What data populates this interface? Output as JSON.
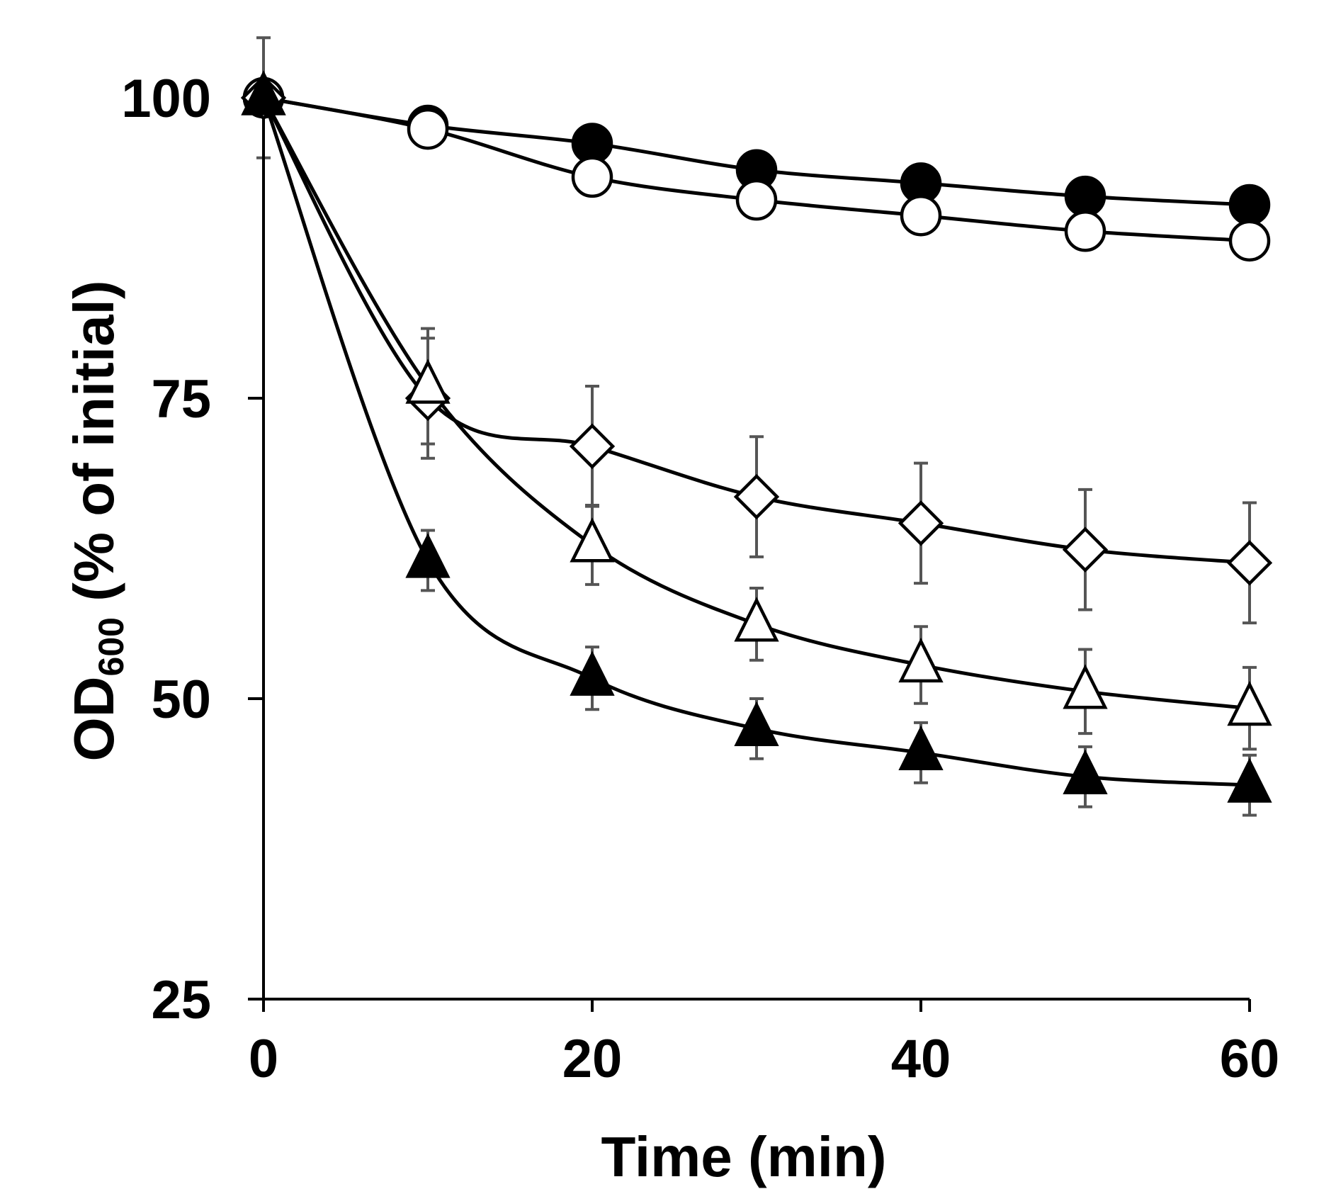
{
  "chart_data": {
    "type": "line",
    "title": "",
    "xlabel": "Time (min)",
    "ylabel_main": "OD",
    "ylabel_sub": "600",
    "ylabel_rest": " (% of initial)",
    "xlim": [
      0,
      60
    ],
    "ylim": [
      25,
      100
    ],
    "xticks": [
      0,
      20,
      40,
      60
    ],
    "yticks": [
      25,
      50,
      75,
      100
    ],
    "grid": false,
    "x": [
      0,
      10,
      20,
      30,
      40,
      50,
      60
    ],
    "series": [
      {
        "name": "filled-circle",
        "marker": "circle",
        "fill": "#000000",
        "values": [
          100,
          97.7,
          96.2,
          94.0,
          92.9,
          91.8,
          91.1
        ],
        "err": [
          0,
          0.6,
          0.6,
          0.6,
          0.6,
          0.6,
          0.6
        ]
      },
      {
        "name": "open-circle",
        "marker": "circle",
        "fill": "#ffffff",
        "values": [
          100,
          97.4,
          93.4,
          91.5,
          90.2,
          88.9,
          88.1
        ],
        "err": [
          0,
          1.2,
          1.2,
          1.2,
          1.2,
          1.2,
          1.2
        ]
      },
      {
        "name": "open-diamond",
        "marker": "diamond",
        "fill": "#ffffff",
        "values": [
          100,
          75.0,
          71.0,
          66.8,
          64.6,
          62.4,
          61.3
        ],
        "err": [
          0,
          5.0,
          5.0,
          5.0,
          5.0,
          5.0,
          5.0
        ]
      },
      {
        "name": "open-triangle",
        "marker": "triangle",
        "fill": "#ffffff",
        "values": [
          100,
          76.0,
          62.8,
          56.2,
          52.8,
          50.6,
          49.2
        ],
        "err": [
          0,
          4.8,
          3.3,
          3.0,
          3.2,
          3.5,
          3.4
        ]
      },
      {
        "name": "filled-triangle",
        "marker": "triangle",
        "fill": "#000000",
        "values": [
          100,
          61.5,
          51.7,
          47.5,
          45.5,
          43.5,
          42.8
        ],
        "err": [
          5,
          2.5,
          2.6,
          2.5,
          2.5,
          2.5,
          2.5
        ]
      }
    ]
  }
}
